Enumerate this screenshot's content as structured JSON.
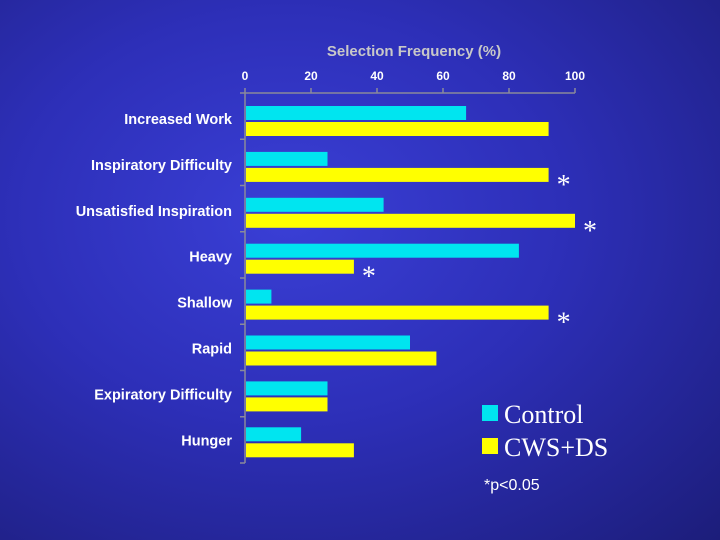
{
  "chart_data": {
    "type": "bar",
    "orientation": "horizontal",
    "title": "Selection Frequency (%)",
    "xlim": [
      0,
      100
    ],
    "xticks": [
      0,
      20,
      40,
      60,
      80,
      100
    ],
    "categories": [
      "Increased Work",
      "Inspiratory Difficulty",
      "Unsatisfied Inspiration",
      "Heavy",
      "Shallow",
      "Rapid",
      "Expiratory Difficulty",
      "Hunger"
    ],
    "series": [
      {
        "name": "Control",
        "color": "#00e5f0",
        "values": [
          67,
          25,
          42,
          83,
          8,
          50,
          25,
          17
        ]
      },
      {
        "name": "CWS+DS",
        "color": "#ffff00",
        "values": [
          92,
          92,
          100,
          33,
          92,
          58,
          25,
          33
        ]
      }
    ],
    "significance": [
      {
        "category": "Inspiratory Difficulty",
        "series": "CWS+DS",
        "marker": "*"
      },
      {
        "category": "Unsatisfied Inspiration",
        "series": "CWS+DS",
        "marker": "*"
      },
      {
        "category": "Heavy",
        "series": "CWS+DS",
        "marker": "*"
      },
      {
        "category": "Shallow",
        "series": "CWS+DS",
        "marker": "*"
      }
    ],
    "legend_position": "bottom-right",
    "grid": false,
    "note": "*p<0.05"
  }
}
